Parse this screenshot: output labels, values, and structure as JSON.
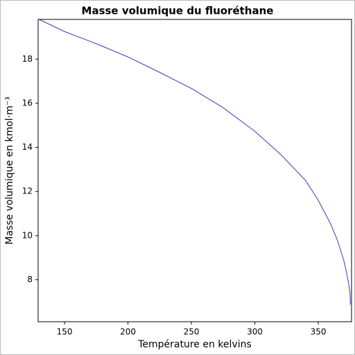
{
  "chart_data": {
    "type": "line",
    "title": "Masse volumique du fluoréthane",
    "xlabel": "Température en kelvins",
    "ylabel": "Masse volumique en kmol·m⁻³",
    "x": [
      129.95,
      150,
      175,
      200,
      225,
      250,
      275,
      300,
      320,
      340,
      350,
      360,
      365,
      370,
      372,
      374,
      375,
      375.31
    ],
    "series": [
      {
        "color": "#3a3ab8",
        "values": [
          19.8,
          19.25,
          18.7,
          18.1,
          17.4,
          16.67,
          15.8,
          14.73,
          13.7,
          12.5,
          11.6,
          10.5,
          9.8,
          8.9,
          8.4,
          7.8,
          7.4,
          6.87
        ]
      }
    ],
    "xlim": [
      129.2,
      376.2
    ],
    "xticks": [
      150,
      200,
      250,
      300,
      350
    ],
    "ylim": [
      6.1,
      19.8
    ],
    "yticks": [
      8,
      10,
      12,
      14,
      16,
      18
    ]
  }
}
